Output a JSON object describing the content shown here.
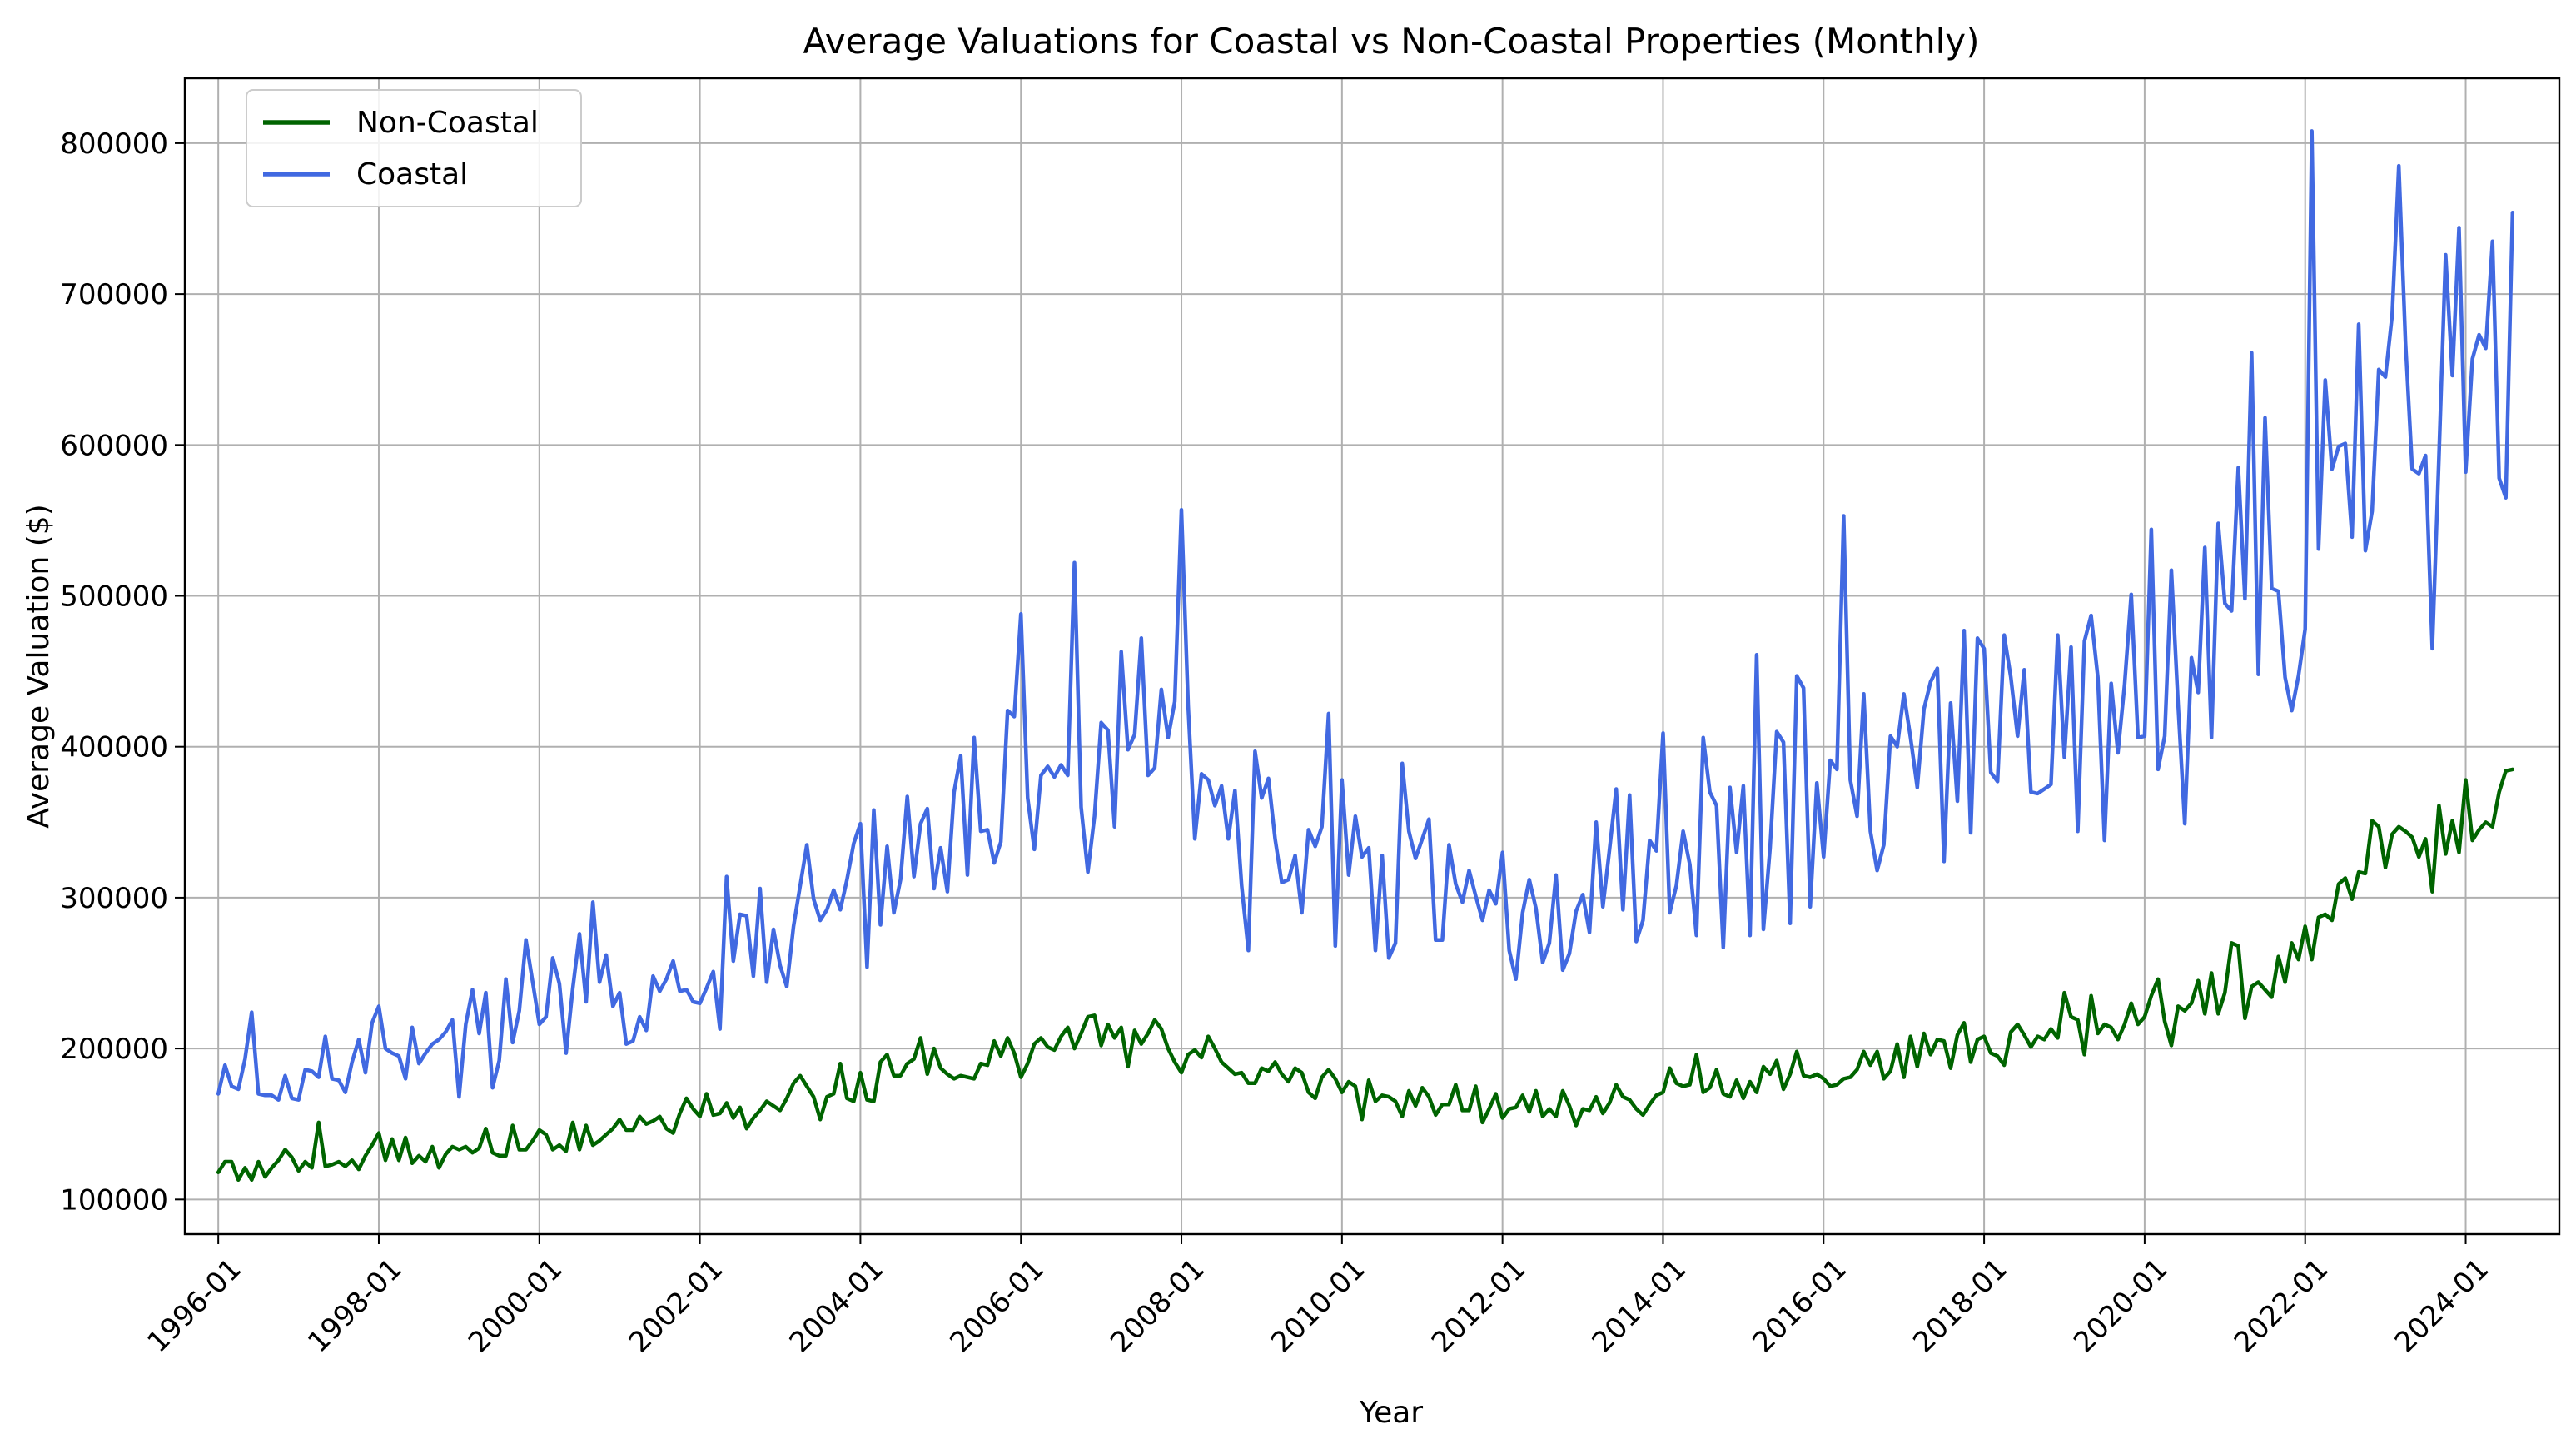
{
  "chart_data": {
    "type": "line",
    "title": "Average Valuations for Coastal vs Non-Coastal Properties (Monthly)",
    "xlabel": "Year",
    "ylabel": "Average Valuation ($)",
    "x_start": "1996-01",
    "x_frequency": "monthly",
    "x_ticks": [
      "1996-01",
      "1998-01",
      "2000-01",
      "2002-01",
      "2004-01",
      "2006-01",
      "2008-01",
      "2010-01",
      "2012-01",
      "2014-01",
      "2016-01",
      "2018-01",
      "2020-01",
      "2022-01",
      "2024-01"
    ],
    "y_ticks": [
      "100000",
      "200000",
      "300000",
      "400000",
      "500000",
      "600000",
      "700000",
      "800000"
    ],
    "ylim": [
      77000,
      843000
    ],
    "xlim": [
      "1995-08",
      "2025-03"
    ],
    "grid": true,
    "legend_position": "top-left",
    "series": [
      {
        "name": "Non-Coastal",
        "color": "#006400",
        "values": [
          118000,
          125000,
          125000,
          113000,
          121000,
          113000,
          125000,
          115000,
          121000,
          126000,
          133000,
          128000,
          119000,
          125000,
          121000,
          151000,
          122000,
          123000,
          125000,
          122000,
          126000,
          120000,
          129000,
          136000,
          144000,
          126000,
          140000,
          126000,
          141000,
          124000,
          129000,
          125000,
          135000,
          121000,
          130000,
          135000,
          133000,
          135000,
          131000,
          134000,
          147000,
          131000,
          129000,
          129000,
          149000,
          133000,
          133000,
          139000,
          146000,
          143000,
          133000,
          136000,
          132000,
          151000,
          133000,
          149000,
          136000,
          139000,
          143000,
          147000,
          153000,
          146000,
          146000,
          155000,
          150000,
          152000,
          155000,
          147000,
          144000,
          157000,
          167000,
          160000,
          155000,
          170000,
          156000,
          157000,
          164000,
          154000,
          161000,
          147000,
          154000,
          159000,
          165000,
          162000,
          159000,
          167000,
          177000,
          182000,
          175000,
          168000,
          153000,
          168000,
          170000,
          190000,
          167000,
          165000,
          184000,
          166000,
          165000,
          191000,
          196000,
          182000,
          182000,
          190000,
          193000,
          207000,
          183000,
          200000,
          187000,
          183000,
          180000,
          182000,
          181000,
          180000,
          190000,
          189000,
          205000,
          195000,
          207000,
          197000,
          181000,
          190000,
          203000,
          207000,
          201000,
          199000,
          208000,
          214000,
          200000,
          210000,
          221000,
          222000,
          202000,
          216000,
          207000,
          214000,
          188000,
          212000,
          203000,
          210000,
          219000,
          213000,
          200000,
          191000,
          184000,
          196000,
          199000,
          194000,
          208000,
          200000,
          191000,
          187000,
          183000,
          184000,
          177000,
          177000,
          187000,
          185000,
          191000,
          183000,
          178000,
          187000,
          184000,
          171000,
          167000,
          181000,
          186000,
          180000,
          171000,
          178000,
          175000,
          153000,
          179000,
          165000,
          169000,
          168000,
          165000,
          155000,
          172000,
          162000,
          174000,
          168000,
          156000,
          163000,
          163000,
          176000,
          159000,
          159000,
          175000,
          151000,
          160000,
          170000,
          154000,
          160000,
          161000,
          169000,
          158000,
          172000,
          155000,
          160000,
          155000,
          172000,
          162000,
          149000,
          160000,
          159000,
          168000,
          157000,
          164000,
          176000,
          168000,
          166000,
          160000,
          156000,
          163000,
          169000,
          171000,
          187000,
          177000,
          175000,
          176000,
          196000,
          171000,
          174000,
          186000,
          170000,
          168000,
          179000,
          167000,
          178000,
          171000,
          188000,
          183000,
          192000,
          173000,
          183000,
          198000,
          182000,
          181000,
          183000,
          180000,
          175000,
          176000,
          180000,
          181000,
          186000,
          198000,
          189000,
          198000,
          180000,
          185000,
          203000,
          181000,
          208000,
          188000,
          210000,
          196000,
          206000,
          205000,
          187000,
          209000,
          217000,
          191000,
          206000,
          208000,
          197000,
          195000,
          189000,
          211000,
          216000,
          209000,
          201000,
          208000,
          206000,
          213000,
          207000,
          237000,
          221000,
          219000,
          196000,
          235000,
          210000,
          216000,
          214000,
          206000,
          216000,
          230000,
          216000,
          221000,
          235000,
          246000,
          218000,
          202000,
          228000,
          225000,
          230000,
          245000,
          223000,
          250000,
          223000,
          237000,
          270000,
          268000,
          220000,
          241000,
          244000,
          239000,
          234000,
          261000,
          244000,
          270000,
          259000,
          281000,
          259000,
          287000,
          289000,
          285000,
          309000,
          313000,
          299000,
          317000,
          316000,
          351000,
          347000,
          320000,
          342000,
          347000,
          344000,
          340000,
          327000,
          339000,
          304000,
          361000,
          329000,
          351000,
          330000,
          378000,
          338000,
          345000,
          350000,
          347000,
          370000,
          384000,
          385000
        ]
      },
      {
        "name": "Coastal",
        "color": "#4169e1",
        "values": [
          170000,
          189000,
          175000,
          173000,
          193000,
          224000,
          170000,
          169000,
          169000,
          166000,
          182000,
          167000,
          166000,
          186000,
          185000,
          181000,
          208000,
          180000,
          179000,
          171000,
          191000,
          206000,
          184000,
          217000,
          228000,
          200000,
          197000,
          195000,
          180000,
          214000,
          190000,
          197000,
          203000,
          206000,
          211000,
          219000,
          168000,
          216000,
          239000,
          210000,
          237000,
          174000,
          192000,
          246000,
          204000,
          225000,
          272000,
          244000,
          216000,
          221000,
          260000,
          243000,
          197000,
          240000,
          276000,
          231000,
          297000,
          244000,
          262000,
          228000,
          237000,
          203000,
          205000,
          221000,
          212000,
          248000,
          238000,
          246000,
          258000,
          238000,
          239000,
          231000,
          230000,
          240000,
          251000,
          213000,
          314000,
          258000,
          289000,
          288000,
          248000,
          306000,
          244000,
          279000,
          255000,
          241000,
          281000,
          308000,
          335000,
          299000,
          285000,
          292000,
          305000,
          292000,
          312000,
          336000,
          349000,
          254000,
          358000,
          282000,
          334000,
          290000,
          312000,
          367000,
          314000,
          349000,
          359000,
          306000,
          333000,
          304000,
          370000,
          394000,
          315000,
          406000,
          344000,
          345000,
          323000,
          337000,
          424000,
          420000,
          488000,
          366000,
          332000,
          381000,
          387000,
          380000,
          388000,
          381000,
          522000,
          360000,
          317000,
          354000,
          416000,
          411000,
          347000,
          463000,
          398000,
          408000,
          472000,
          381000,
          386000,
          438000,
          406000,
          430000,
          557000,
          427000,
          339000,
          382000,
          378000,
          361000,
          374000,
          339000,
          371000,
          308000,
          265000,
          397000,
          366000,
          379000,
          339000,
          310000,
          312000,
          328000,
          290000,
          345000,
          334000,
          347000,
          422000,
          268000,
          378000,
          315000,
          354000,
          327000,
          333000,
          265000,
          328000,
          260000,
          270000,
          389000,
          344000,
          326000,
          339000,
          352000,
          272000,
          272000,
          335000,
          309000,
          297000,
          318000,
          301000,
          285000,
          305000,
          296000,
          330000,
          265000,
          246000,
          290000,
          312000,
          293000,
          257000,
          270000,
          315000,
          252000,
          263000,
          291000,
          302000,
          277000,
          350000,
          294000,
          332000,
          372000,
          292000,
          368000,
          271000,
          285000,
          338000,
          331000,
          409000,
          290000,
          308000,
          344000,
          322000,
          275000,
          406000,
          370000,
          361000,
          267000,
          373000,
          330000,
          374000,
          275000,
          461000,
          279000,
          333000,
          410000,
          403000,
          283000,
          447000,
          439000,
          294000,
          376000,
          327000,
          391000,
          385000,
          553000,
          378000,
          354000,
          435000,
          344000,
          318000,
          335000,
          407000,
          400000,
          435000,
          406000,
          373000,
          425000,
          443000,
          452000,
          324000,
          429000,
          364000,
          477000,
          343000,
          472000,
          465000,
          383000,
          377000,
          474000,
          446000,
          407000,
          451000,
          370000,
          369000,
          372000,
          375000,
          474000,
          393000,
          466000,
          344000,
          470000,
          487000,
          446000,
          338000,
          442000,
          396000,
          441000,
          501000,
          406000,
          407000,
          544000,
          385000,
          407000,
          517000,
          428000,
          349000,
          459000,
          436000,
          532000,
          406000,
          548000,
          495000,
          490000,
          585000,
          498000,
          661000,
          448000,
          618000,
          505000,
          503000,
          446000,
          424000,
          447000,
          478000,
          808000,
          531000,
          643000,
          584000,
          599000,
          601000,
          539000,
          680000,
          530000,
          556000,
          650000,
          645000,
          686000,
          785000,
          668000,
          584000,
          581000,
          593000,
          465000,
          592000,
          726000,
          646000,
          744000,
          582000,
          657000,
          673000,
          664000,
          735000,
          578000,
          565000,
          754000
        ]
      }
    ]
  }
}
